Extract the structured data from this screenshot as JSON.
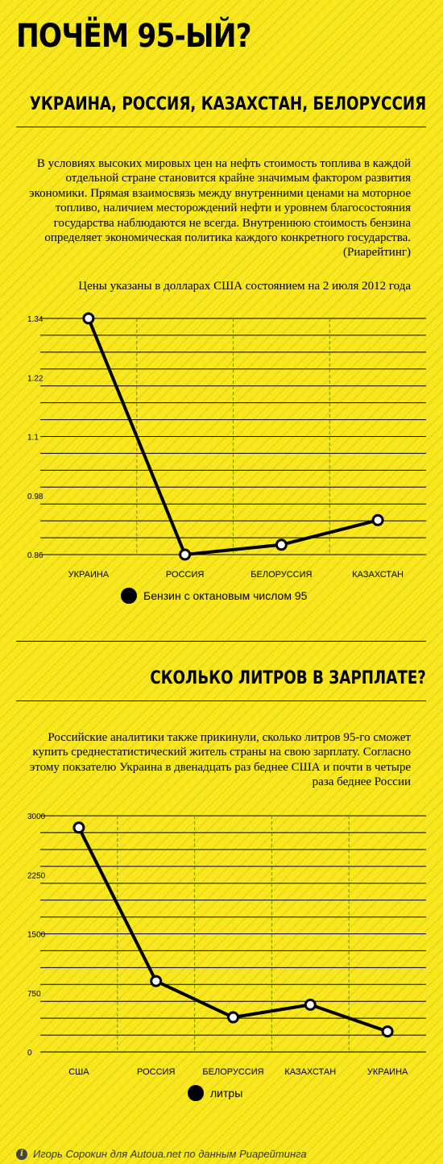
{
  "title": "ПОЧЁМ 95-ЫЙ?",
  "section1": {
    "heading": "УКРАИНА, РОССИЯ, КАЗАХСТАН, БЕЛОРУССИЯ",
    "paragraph": "В условиях высоких мировых цен на нефть стоимость топлива в каждой отдельной стране становится крайне значимым фактором развития экономики. Прямая взаимосвязь между внутренними ценами на моторное топливо, наличием месторождений нефти и уровнем благосостояния государства наблюдаются не всегда. Внутреннюю стоимость бензина определяет экономическая политика каждого конкретного государства. (Риарейтинг)",
    "note": "Цены указаны в долларах США состоянием на 2 июля 2012 года"
  },
  "section2": {
    "heading": "СКОЛЬКО ЛИТРОВ В ЗАРПЛАТЕ?",
    "paragraph": "Российские аналитики также прикинули, сколько литров 95-го сможет купить среднестатистический житель страны на свою зарплату. Согласно этому покзателю Украина в двенадцать раз беднее США и почти в четыре раза беднее России"
  },
  "chart_data": [
    {
      "type": "line",
      "categories": [
        "УКРАИНА",
        "РОССИЯ",
        "БЕЛОРУССИЯ",
        "КАЗАХСТАН"
      ],
      "series": [
        {
          "name": "Бензин с октановым числом 95",
          "values": [
            1.34,
            0.86,
            0.88,
            0.93
          ]
        }
      ],
      "yticks": [
        "1.34",
        "1.22",
        "1.1",
        "0.98",
        "0.86"
      ],
      "ylim": [
        0.86,
        1.34
      ],
      "grid": true,
      "legend": "bottom-center",
      "line_color": "#000000"
    },
    {
      "type": "line",
      "categories": [
        "США",
        "РОССИЯ",
        "БЕЛОРУССИЯ",
        "КАЗАХСТАН",
        "УКРАИНА"
      ],
      "series": [
        {
          "name": "литры",
          "values": [
            2850,
            900,
            440,
            600,
            260
          ]
        }
      ],
      "yticks": [
        "3000",
        "2250",
        "1500",
        "750",
        "0"
      ],
      "ylim": [
        0,
        3000
      ],
      "grid": true,
      "legend": "bottom-center",
      "line_color": "#000000"
    }
  ],
  "credit": {
    "icon": "info-icon",
    "icon_glyph": "i",
    "text": "Игорь Сорокин для Autoua.net по данным Риарейтинга"
  }
}
